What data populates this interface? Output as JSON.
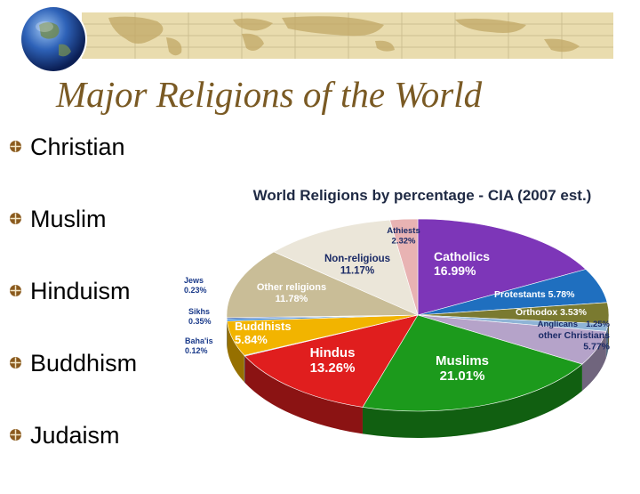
{
  "slide": {
    "title": "Major Religions of the World",
    "bullets": [
      "Christian",
      "Muslim",
      "Hinduism",
      "Buddhism",
      "Judaism"
    ]
  },
  "colors": {
    "title": "#7a5a24",
    "banner": "#e9dcae",
    "bullet_marker": "#8a5a1e"
  },
  "icons": {
    "logo": "globe-icon",
    "bullet": "compass-bullet-icon"
  },
  "chart_data": {
    "type": "pie",
    "title": "World Religions by percentage - CIA (2007 est.)",
    "unit": "%",
    "slices": [
      {
        "name": "Catholics",
        "value": 16.99,
        "label": "16.99%",
        "color": "#7d36b8"
      },
      {
        "name": "Protestants",
        "value": 5.78,
        "label": "5.78%",
        "color": "#1f6fbf"
      },
      {
        "name": "Orthodox",
        "value": 3.53,
        "label": "3.53%",
        "color": "#7a7a30"
      },
      {
        "name": "Anglicans",
        "value": 1.25,
        "label": "1.25%",
        "color": "#8fb4d6"
      },
      {
        "name": "other Christians",
        "value": 5.77,
        "label": "5.77%",
        "color": "#b5a3c9"
      },
      {
        "name": "Muslims",
        "value": 21.01,
        "label": "21.01%",
        "color": "#1c9a1c"
      },
      {
        "name": "Hindus",
        "value": 13.26,
        "label": "13.26%",
        "color": "#e01e1e"
      },
      {
        "name": "Baha'is",
        "value": 0.12,
        "label": "0.12%",
        "color": "#6fb1e3"
      },
      {
        "name": "Buddhists",
        "value": 5.84,
        "label": "5.84%",
        "color": "#f2b400"
      },
      {
        "name": "Sikhs",
        "value": 0.35,
        "label": "0.35%",
        "color": "#2f7fcf"
      },
      {
        "name": "Jews",
        "value": 0.23,
        "label": "0.23%",
        "color": "#4a6db5"
      },
      {
        "name": "Other religions",
        "value": 11.78,
        "label": "11.78%",
        "color": "#c9bd97"
      },
      {
        "name": "Non-religious",
        "value": 11.17,
        "label": "11.17%",
        "color": "#ebe6d9"
      },
      {
        "name": "Athiests",
        "value": 2.32,
        "label": "2.32%",
        "color": "#e8b3b3"
      }
    ]
  }
}
